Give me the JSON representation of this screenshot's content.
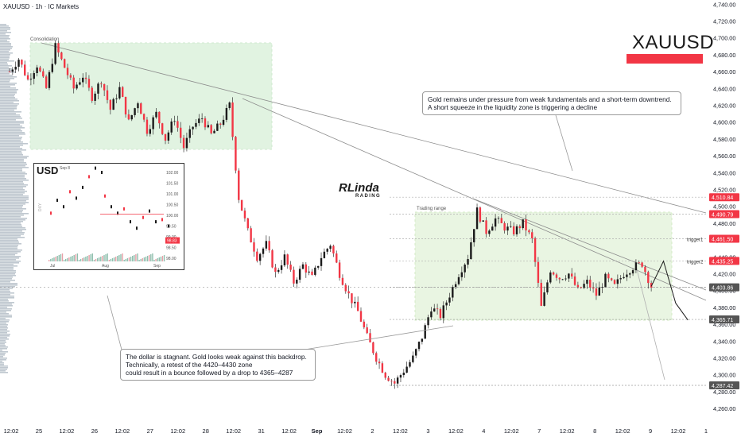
{
  "header": {
    "title": "XAUUSD · 1h · IC Markets"
  },
  "symbol": "XAUUSD",
  "symbol_bar_text": "",
  "logo": {
    "name": "Linda",
    "sub": "RADING"
  },
  "notes": {
    "top_right": "Gold remains under pressure from weak fundamentals and a short-term downtrend.\nA short squeeze in the liquidity zone is triggering a decline",
    "bottom_left": "The dollar is stagnant. Gold looks weak against this backdrop.\nTechnically, a retest of the 4420–4430 zone\ncould result in a bounce followed by a drop to 4365–4287"
  },
  "zones": {
    "consolidation": "Consolidation",
    "trading_range": "Trading range"
  },
  "levels": [
    {
      "value": "4,510.84",
      "price": 4510.84,
      "color": "#f23645",
      "label": ""
    },
    {
      "value": "4,490.79",
      "price": 4490.79,
      "color": "#f23645",
      "label": ""
    },
    {
      "value": "4,461.50",
      "price": 4461.5,
      "color": "#f23645",
      "label": "trigger1"
    },
    {
      "value": "4,435.25",
      "price": 4435.25,
      "color": "#f23645",
      "label": "trigger2"
    },
    {
      "value": "4,403.86",
      "price": 4403.86,
      "color": "#555555",
      "label": ""
    },
    {
      "value": "4,365.71",
      "price": 4365.71,
      "color": "#555555",
      "label": ""
    },
    {
      "value": "4,287.42",
      "price": 4287.42,
      "color": "#555555",
      "label": ""
    }
  ],
  "inset": {
    "title": "USD",
    "date": "Sep 8",
    "y_ticks": [
      "102.00",
      "101.50",
      "101.00",
      "100.50",
      "100.00",
      "99.50",
      "99.00",
      "98.50",
      "98.00"
    ],
    "x_ticks": [
      "Jul",
      "Aug",
      "Sep"
    ],
    "badge": "98.83",
    "side_label": "DXY"
  },
  "chart_data": {
    "type": "candlestick",
    "title": "XAUUSD · 1h · IC Markets",
    "ylim": [
      4245,
      4745
    ],
    "y_ticks": [
      "4,740.00",
      "4,720.00",
      "4,700.00",
      "4,680.00",
      "4,660.00",
      "4,640.00",
      "4,620.00",
      "4,600.00",
      "4,580.00",
      "4,560.00",
      "4,540.00",
      "4,520.00",
      "4,500.00",
      "4,480.00",
      "4,460.00",
      "4,440.00",
      "4,420.00",
      "4,400.00",
      "4,380.00",
      "4,360.00",
      "4,340.00",
      "4,320.00",
      "4,300.00",
      "4,280.00",
      "4,260.00"
    ],
    "x_ticks": [
      "12:02",
      "25",
      "12:02",
      "26",
      "12:02",
      "27",
      "12:02",
      "28",
      "12:02",
      "31",
      "12:02",
      "Sep",
      "12:02",
      "2",
      "12:02",
      "3",
      "12:02",
      "4",
      "12:02",
      "7",
      "12:02",
      "8",
      "12:02",
      "9",
      "12:02",
      "1"
    ],
    "price_path": [
      [
        0,
        4660
      ],
      [
        3,
        4675
      ],
      [
        6,
        4650
      ],
      [
        9,
        4668
      ],
      [
        12,
        4640
      ],
      [
        15,
        4690
      ],
      [
        18,
        4665
      ],
      [
        21,
        4640
      ],
      [
        24,
        4655
      ],
      [
        27,
        4630
      ],
      [
        30,
        4650
      ],
      [
        33,
        4615
      ],
      [
        36,
        4640
      ],
      [
        39,
        4600
      ],
      [
        42,
        4625
      ],
      [
        45,
        4590
      ],
      [
        48,
        4610
      ],
      [
        51,
        4580
      ],
      [
        54,
        4605
      ],
      [
        57,
        4570
      ],
      [
        60,
        4595
      ],
      [
        63,
        4605
      ],
      [
        66,
        4585
      ],
      [
        69,
        4598
      ],
      [
        72,
        4620
      ],
      [
        75,
        4510
      ],
      [
        78,
        4470
      ],
      [
        81,
        4440
      ],
      [
        84,
        4455
      ],
      [
        87,
        4420
      ],
      [
        90,
        4440
      ],
      [
        93,
        4410
      ],
      [
        96,
        4430
      ],
      [
        99,
        4415
      ],
      [
        102,
        4440
      ],
      [
        105,
        4455
      ],
      [
        108,
        4420
      ],
      [
        111,
        4395
      ],
      [
        114,
        4375
      ],
      [
        117,
        4345
      ],
      [
        120,
        4320
      ],
      [
        123,
        4300
      ],
      [
        126,
        4290
      ],
      [
        129,
        4305
      ],
      [
        132,
        4320
      ],
      [
        135,
        4345
      ],
      [
        138,
        4380
      ],
      [
        141,
        4370
      ],
      [
        144,
        4395
      ],
      [
        147,
        4420
      ],
      [
        150,
        4440
      ],
      [
        153,
        4495
      ],
      [
        156,
        4470
      ],
      [
        159,
        4485
      ],
      [
        162,
        4475
      ],
      [
        165,
        4470
      ],
      [
        168,
        4480
      ],
      [
        171,
        4460
      ],
      [
        174,
        4380
      ],
      [
        177,
        4425
      ],
      [
        180,
        4415
      ],
      [
        183,
        4420
      ],
      [
        186,
        4400
      ],
      [
        189,
        4410
      ],
      [
        192,
        4395
      ],
      [
        195,
        4415
      ],
      [
        198,
        4405
      ],
      [
        201,
        4420
      ],
      [
        204,
        4428
      ],
      [
        207,
        4432
      ],
      [
        210,
        4405
      ]
    ],
    "forecast": [
      [
        210,
        4405
      ],
      [
        214,
        4435
      ],
      [
        218,
        4385
      ],
      [
        222,
        4365
      ]
    ],
    "n_bars": 230,
    "grid": true
  }
}
